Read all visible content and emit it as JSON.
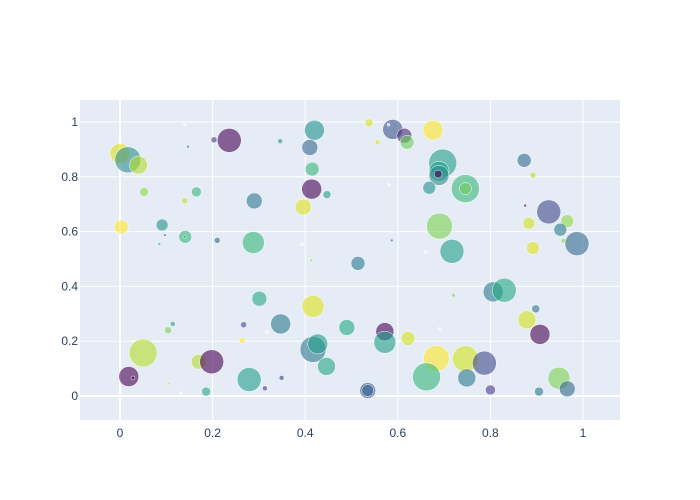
{
  "chart_data": {
    "type": "scatter",
    "subtype": "bubble",
    "title": "",
    "xlabel": "",
    "ylabel": "",
    "xlim": [
      -0.087,
      1.08
    ],
    "ylim": [
      -0.088,
      1.08
    ],
    "grid": true,
    "legend": false,
    "colorscale": "viridis",
    "plot_bgcolor": "#e5ecf6",
    "paper_bgcolor": "#ffffff",
    "x_ticks": [
      "0",
      "0.2",
      "0.4",
      "0.6",
      "0.8",
      "1"
    ],
    "x_tick_values": [
      0,
      0.2,
      0.4,
      0.6,
      0.8,
      1
    ],
    "y_ticks": [
      "0",
      "0.2",
      "0.4",
      "0.6",
      "0.8",
      "1"
    ],
    "y_tick_values": [
      0,
      0.2,
      0.4,
      0.6,
      0.8,
      1
    ],
    "points": [
      {
        "x": 0.0,
        "y": 0.885,
        "size": 20,
        "color": "#dde318"
      },
      {
        "x": 0.017,
        "y": 0.862,
        "size": 26,
        "color": "#2c8d8d"
      },
      {
        "x": 0.04,
        "y": 0.843,
        "size": 18,
        "color": "#b5de2b"
      },
      {
        "x": 0.052,
        "y": 0.745,
        "size": 9,
        "color": "#8fd744"
      },
      {
        "x": 0.003,
        "y": 0.617,
        "size": 14,
        "color": "#fde725"
      },
      {
        "x": 0.091,
        "y": 0.624,
        "size": 12,
        "color": "#21918c"
      },
      {
        "x": 0.097,
        "y": 0.587,
        "size": 3,
        "color": "#2a788e"
      },
      {
        "x": 0.085,
        "y": 0.555,
        "size": 3,
        "color": "#22a884"
      },
      {
        "x": 0.141,
        "y": 0.581,
        "size": 13,
        "color": "#35b779"
      },
      {
        "x": 0.14,
        "y": 0.581,
        "size": 3,
        "color": "#1f9e89"
      },
      {
        "x": 0.14,
        "y": 0.712,
        "size": 6,
        "color": "#b5de2b"
      },
      {
        "x": 0.165,
        "y": 0.745,
        "size": 10,
        "color": "#35b779"
      },
      {
        "x": 0.147,
        "y": 0.91,
        "size": 3,
        "color": "#31688e"
      },
      {
        "x": 0.14,
        "y": 0.99,
        "size": 2,
        "color": "#ffffff"
      },
      {
        "x": 0.203,
        "y": 0.935,
        "size": 6,
        "color": "#443983"
      },
      {
        "x": 0.236,
        "y": 0.933,
        "size": 24,
        "color": "#440154"
      },
      {
        "x": 0.21,
        "y": 0.568,
        "size": 6,
        "color": "#31688e"
      },
      {
        "x": 0.29,
        "y": 0.712,
        "size": 16,
        "color": "#2a788e"
      },
      {
        "x": 0.288,
        "y": 0.56,
        "size": 22,
        "color": "#35b779"
      },
      {
        "x": 0.346,
        "y": 0.93,
        "size": 5,
        "color": "#21918c"
      },
      {
        "x": 0.41,
        "y": 0.907,
        "size": 16,
        "color": "#31688e"
      },
      {
        "x": 0.42,
        "y": 0.97,
        "size": 20,
        "color": "#21918c"
      },
      {
        "x": 0.415,
        "y": 0.828,
        "size": 14,
        "color": "#35b779"
      },
      {
        "x": 0.414,
        "y": 0.755,
        "size": 20,
        "color": "#440154"
      },
      {
        "x": 0.447,
        "y": 0.735,
        "size": 8,
        "color": "#1f9e89"
      },
      {
        "x": 0.396,
        "y": 0.69,
        "size": 16,
        "color": "#dde318"
      },
      {
        "x": 0.393,
        "y": 0.553,
        "size": 2,
        "color": "#ffffff"
      },
      {
        "x": 0.413,
        "y": 0.495,
        "size": 3,
        "color": "#8fd744"
      },
      {
        "x": 0.514,
        "y": 0.484,
        "size": 14,
        "color": "#2a788e"
      },
      {
        "x": 0.538,
        "y": 0.997,
        "size": 8,
        "color": "#d2e21b"
      },
      {
        "x": 0.556,
        "y": 0.926,
        "size": 5,
        "color": "#dde318"
      },
      {
        "x": 0.589,
        "y": 0.973,
        "size": 20,
        "color": "#3b528b"
      },
      {
        "x": 0.614,
        "y": 0.95,
        "size": 15,
        "color": "#482878"
      },
      {
        "x": 0.62,
        "y": 0.926,
        "size": 14,
        "color": "#6ccd5a"
      },
      {
        "x": 0.676,
        "y": 0.97,
        "size": 20,
        "color": "#fde725"
      },
      {
        "x": 0.697,
        "y": 0.85,
        "size": 28,
        "color": "#1f9e89"
      },
      {
        "x": 0.689,
        "y": 0.82,
        "size": 20,
        "color": "#1f9e89"
      },
      {
        "x": 0.689,
        "y": 0.805,
        "size": 20,
        "color": "#2c8d8d"
      },
      {
        "x": 0.687,
        "y": 0.81,
        "size": 8,
        "color": "#440154"
      },
      {
        "x": 0.668,
        "y": 0.76,
        "size": 13,
        "color": "#21918c"
      },
      {
        "x": 0.746,
        "y": 0.757,
        "size": 28,
        "color": "#35b779"
      },
      {
        "x": 0.746,
        "y": 0.757,
        "size": 12,
        "color": "#6ccd5a"
      },
      {
        "x": 0.581,
        "y": 0.772,
        "size": 2,
        "color": "#ffffff"
      },
      {
        "x": 0.69,
        "y": 0.62,
        "size": 26,
        "color": "#7ad151"
      },
      {
        "x": 0.717,
        "y": 0.528,
        "size": 24,
        "color": "#1f9e89"
      },
      {
        "x": 0.66,
        "y": 0.525,
        "size": 2,
        "color": "#ffffff"
      },
      {
        "x": 0.587,
        "y": 0.568,
        "size": 3,
        "color": "#2a788e"
      },
      {
        "x": 0.873,
        "y": 0.86,
        "size": 14,
        "color": "#31688e"
      },
      {
        "x": 0.892,
        "y": 0.806,
        "size": 6,
        "color": "#b5de2b"
      },
      {
        "x": 0.875,
        "y": 0.695,
        "size": 2,
        "color": "#440154"
      },
      {
        "x": 0.926,
        "y": 0.672,
        "size": 24,
        "color": "#3e4a89"
      },
      {
        "x": 0.966,
        "y": 0.638,
        "size": 13,
        "color": "#8fd744"
      },
      {
        "x": 0.951,
        "y": 0.607,
        "size": 13,
        "color": "#2a788e"
      },
      {
        "x": 0.883,
        "y": 0.63,
        "size": 12,
        "color": "#d2e21b"
      },
      {
        "x": 0.958,
        "y": 0.567,
        "size": 5,
        "color": "#8fd744"
      },
      {
        "x": 0.987,
        "y": 0.556,
        "size": 24,
        "color": "#31688e"
      },
      {
        "x": 0.892,
        "y": 0.54,
        "size": 13,
        "color": "#dde318"
      },
      {
        "x": 0.301,
        "y": 0.355,
        "size": 15,
        "color": "#22a884"
      },
      {
        "x": 0.347,
        "y": 0.263,
        "size": 20,
        "color": "#2a788e"
      },
      {
        "x": 0.267,
        "y": 0.26,
        "size": 6,
        "color": "#414487"
      },
      {
        "x": 0.264,
        "y": 0.202,
        "size": 6,
        "color": "#fde725"
      },
      {
        "x": 0.318,
        "y": 0.233,
        "size": 2,
        "color": "#ffffff"
      },
      {
        "x": 0.417,
        "y": 0.327,
        "size": 22,
        "color": "#dde318"
      },
      {
        "x": 0.417,
        "y": 0.17,
        "size": 26,
        "color": "#2a788e"
      },
      {
        "x": 0.427,
        "y": 0.19,
        "size": 20,
        "color": "#1f9e89"
      },
      {
        "x": 0.446,
        "y": 0.108,
        "size": 18,
        "color": "#22a884"
      },
      {
        "x": 0.49,
        "y": 0.25,
        "size": 16,
        "color": "#22a884"
      },
      {
        "x": 0.572,
        "y": 0.235,
        "size": 18,
        "color": "#440154"
      },
      {
        "x": 0.572,
        "y": 0.196,
        "size": 22,
        "color": "#1f9e89"
      },
      {
        "x": 0.622,
        "y": 0.21,
        "size": 14,
        "color": "#d2e21b"
      },
      {
        "x": 0.535,
        "y": 0.02,
        "size": 16,
        "color": "#3b528b"
      },
      {
        "x": 0.535,
        "y": 0.02,
        "size": 12,
        "color": "#31688e"
      },
      {
        "x": 0.72,
        "y": 0.368,
        "size": 4,
        "color": "#7ad151"
      },
      {
        "x": 0.69,
        "y": 0.245,
        "size": 2,
        "color": "#ffffff"
      },
      {
        "x": 0.683,
        "y": 0.137,
        "size": 26,
        "color": "#fde725"
      },
      {
        "x": 0.662,
        "y": 0.07,
        "size": 28,
        "color": "#35b779"
      },
      {
        "x": 0.746,
        "y": 0.136,
        "size": 26,
        "color": "#d2e21b"
      },
      {
        "x": 0.749,
        "y": 0.066,
        "size": 18,
        "color": "#2a788e"
      },
      {
        "x": 0.787,
        "y": 0.12,
        "size": 24,
        "color": "#3e4a89"
      },
      {
        "x": 0.8,
        "y": 0.022,
        "size": 10,
        "color": "#443983"
      },
      {
        "x": 0.806,
        "y": 0.38,
        "size": 20,
        "color": "#2a788e"
      },
      {
        "x": 0.83,
        "y": 0.386,
        "size": 24,
        "color": "#22a884"
      },
      {
        "x": 0.898,
        "y": 0.318,
        "size": 8,
        "color": "#2a788e"
      },
      {
        "x": 0.879,
        "y": 0.278,
        "size": 18,
        "color": "#d2e21b"
      },
      {
        "x": 0.907,
        "y": 0.225,
        "size": 20,
        "color": "#440154"
      },
      {
        "x": 0.948,
        "y": 0.065,
        "size": 22,
        "color": "#7ad151"
      },
      {
        "x": 0.966,
        "y": 0.026,
        "size": 16,
        "color": "#31688e"
      },
      {
        "x": 0.905,
        "y": 0.016,
        "size": 9,
        "color": "#2a788e"
      },
      {
        "x": 0.019,
        "y": 0.071,
        "size": 20,
        "color": "#440154"
      },
      {
        "x": 0.028,
        "y": 0.066,
        "size": 4,
        "color": "#440154"
      },
      {
        "x": 0.05,
        "y": 0.157,
        "size": 28,
        "color": "#b5de2b"
      },
      {
        "x": 0.105,
        "y": 0.045,
        "size": 2,
        "color": "#b5de2b"
      },
      {
        "x": 0.131,
        "y": 0.011,
        "size": 2,
        "color": "#ffffff"
      },
      {
        "x": 0.104,
        "y": 0.24,
        "size": 7,
        "color": "#7ad151"
      },
      {
        "x": 0.114,
        "y": 0.263,
        "size": 5,
        "color": "#1f9e89"
      },
      {
        "x": 0.17,
        "y": 0.125,
        "size": 15,
        "color": "#b5de2b"
      },
      {
        "x": 0.198,
        "y": 0.125,
        "size": 24,
        "color": "#440154"
      },
      {
        "x": 0.186,
        "y": 0.016,
        "size": 9,
        "color": "#22a884"
      },
      {
        "x": 0.279,
        "y": 0.06,
        "size": 24,
        "color": "#1f9e89"
      },
      {
        "x": 0.313,
        "y": 0.028,
        "size": 5,
        "color": "#443983"
      },
      {
        "x": 0.349,
        "y": 0.066,
        "size": 5,
        "color": "#414487"
      },
      {
        "x": 0.58,
        "y": 0.99,
        "size": 2,
        "color": "#ffffff"
      }
    ]
  },
  "axes": {
    "x_ticks": [
      "0",
      "0.2",
      "0.4",
      "0.6",
      "0.8",
      "1"
    ],
    "y_ticks": [
      "0",
      "0.2",
      "0.4",
      "0.6",
      "0.8",
      "1"
    ]
  }
}
